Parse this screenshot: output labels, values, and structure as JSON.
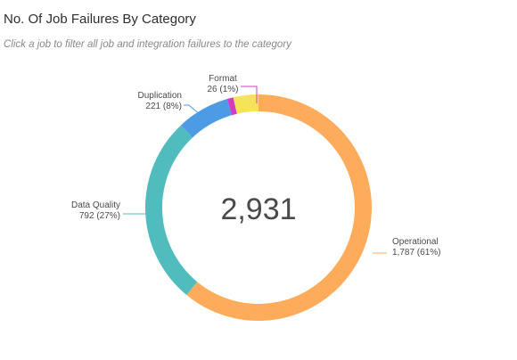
{
  "header": {
    "title": "No. Of Job Failures By Category",
    "subtitle": "Click a job to filter all job and integration failures to the category"
  },
  "chart_data": {
    "type": "pie",
    "variant": "donut",
    "total_label": "2,931",
    "slices": [
      {
        "name": "Operational",
        "value": 1787,
        "percent": 61,
        "value_label": "1,787 (61%)",
        "color": "#FFAB5C"
      },
      {
        "name": "Data Quality",
        "value": 792,
        "percent": 27,
        "value_label": "792 (27%)",
        "color": "#50BCBD"
      },
      {
        "name": "Duplication",
        "value": 221,
        "percent": 8,
        "value_label": "221 (8%)",
        "color": "#4E9BE5"
      },
      {
        "name": "Format",
        "value": 26,
        "percent": 1,
        "value_label": "26 (1%)",
        "color": "#D33CC1"
      },
      {
        "name": "",
        "value": 105,
        "percent": 3,
        "value_label": "",
        "color": "#F5E35A"
      }
    ],
    "legend": "none",
    "labels": "outside"
  }
}
